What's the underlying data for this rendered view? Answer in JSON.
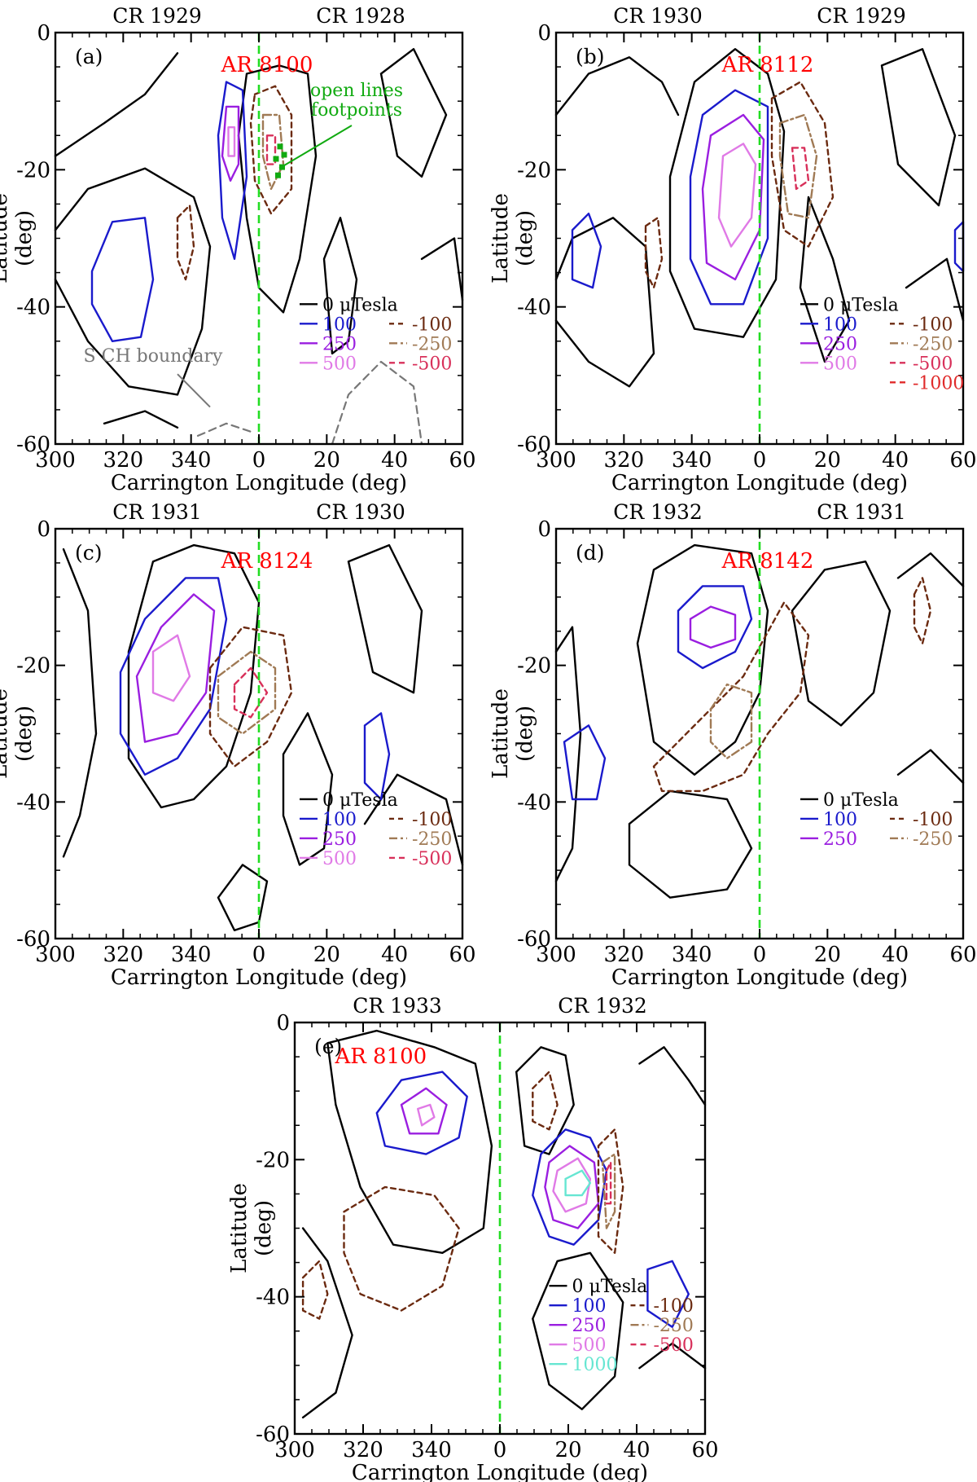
{
  "figure": {
    "x_axis_label": "Carrington Longitude (deg)",
    "y_axis_label_line1": "Latitude",
    "y_axis_label_line2": "(deg)",
    "unit_label": "0 μTesla"
  },
  "colors": {
    "zero": "#000000",
    "pos100": "#1a1acc",
    "pos250": "#9a1ee0",
    "pos500": "#e07ae6",
    "pos1000": "#66e6d2",
    "neg100": "#6b2a10",
    "neg250": "#a07a55",
    "neg500": "#d8305a",
    "neg1000": "#e02a2a",
    "meridian": "#22dd22",
    "ar_label": "#ff0000",
    "annotation": "#11aa11",
    "boundary": "#777777"
  },
  "chart_data": [
    {
      "type": "contour",
      "panel": "(a)",
      "rotation_labels": [
        "CR 1929",
        "CR 1928"
      ],
      "active_region": "AR 8100",
      "xlabel": "Carrington Longitude (deg)",
      "ylabel": "Latitude (deg)",
      "x_ticks": [
        "300",
        "320",
        "340",
        "0",
        "20",
        "40",
        "60"
      ],
      "y_ticks": [
        "0",
        "-20",
        "-40",
        "-60"
      ],
      "xlim": [
        300,
        420
      ],
      "ylim": [
        -60,
        0
      ],
      "contour_levels_uTesla": [
        0,
        100,
        250,
        500,
        -100,
        -250,
        -500
      ],
      "legend": {
        "zero": "0 μTesla",
        "positive": [
          "100",
          "250",
          "500"
        ],
        "negative": [
          "-100",
          "-250",
          "-500"
        ]
      },
      "annotations": [
        "open lines footpoints",
        "S CH boundary"
      ]
    },
    {
      "type": "contour",
      "panel": "(b)",
      "rotation_labels": [
        "CR 1930",
        "CR 1929"
      ],
      "active_region": "AR 8112",
      "xlabel": "Carrington Longitude (deg)",
      "ylabel": "Latitude (deg)",
      "x_ticks": [
        "300",
        "320",
        "340",
        "0",
        "20",
        "40",
        "60"
      ],
      "y_ticks": [
        "0",
        "-20",
        "-40",
        "-60"
      ],
      "xlim": [
        300,
        420
      ],
      "ylim": [
        -60,
        0
      ],
      "contour_levels_uTesla": [
        0,
        100,
        250,
        500,
        -100,
        -250,
        -500,
        -1000
      ],
      "legend": {
        "zero": "0 μTesla",
        "positive": [
          "100",
          "250",
          "500"
        ],
        "negative": [
          "-100",
          "-250",
          "-500",
          "-1000"
        ]
      }
    },
    {
      "type": "contour",
      "panel": "(c)",
      "rotation_labels": [
        "CR 1931",
        "CR 1930"
      ],
      "active_region": "AR 8124",
      "xlabel": "Carrington Longitude (deg)",
      "ylabel": "Latitude (deg)",
      "x_ticks": [
        "300",
        "320",
        "340",
        "0",
        "20",
        "40",
        "60"
      ],
      "y_ticks": [
        "0",
        "-20",
        "-40",
        "-60"
      ],
      "xlim": [
        300,
        420
      ],
      "ylim": [
        -60,
        0
      ],
      "contour_levels_uTesla": [
        0,
        100,
        250,
        500,
        -100,
        -250,
        -500
      ],
      "legend": {
        "zero": "0 μTesla",
        "positive": [
          "100",
          "250",
          "500"
        ],
        "negative": [
          "-100",
          "-250",
          "-500"
        ]
      }
    },
    {
      "type": "contour",
      "panel": "(d)",
      "rotation_labels": [
        "CR 1932",
        "CR 1931"
      ],
      "active_region": "AR 8142",
      "xlabel": "Carrington Longitude (deg)",
      "ylabel": "Latitude (deg)",
      "x_ticks": [
        "300",
        "320",
        "340",
        "0",
        "20",
        "40",
        "60"
      ],
      "y_ticks": [
        "0",
        "-20",
        "-40",
        "-60"
      ],
      "xlim": [
        300,
        420
      ],
      "ylim": [
        -60,
        0
      ],
      "contour_levels_uTesla": [
        0,
        100,
        250,
        -100,
        -250
      ],
      "legend": {
        "zero": "0 μTesla",
        "positive": [
          "100",
          "250"
        ],
        "negative": [
          "-100",
          "-250"
        ]
      }
    },
    {
      "type": "contour",
      "panel": "(e)",
      "rotation_labels": [
        "CR 1933",
        "CR 1932"
      ],
      "active_region": "AR 8100",
      "xlabel": "Carrington Longitude (deg)",
      "ylabel": "Latitude (deg)",
      "x_ticks": [
        "300",
        "320",
        "340",
        "0",
        "20",
        "40",
        "60"
      ],
      "y_ticks": [
        "0",
        "-20",
        "-40",
        "-60"
      ],
      "xlim": [
        300,
        420
      ],
      "ylim": [
        -60,
        0
      ],
      "contour_levels_uTesla": [
        0,
        100,
        250,
        500,
        1000,
        -100,
        -250,
        -500
      ],
      "legend": {
        "zero": "0 μTesla",
        "positive": [
          "100",
          "250",
          "500",
          "1000"
        ],
        "negative": [
          "-100",
          "-250",
          "-500"
        ]
      }
    }
  ]
}
